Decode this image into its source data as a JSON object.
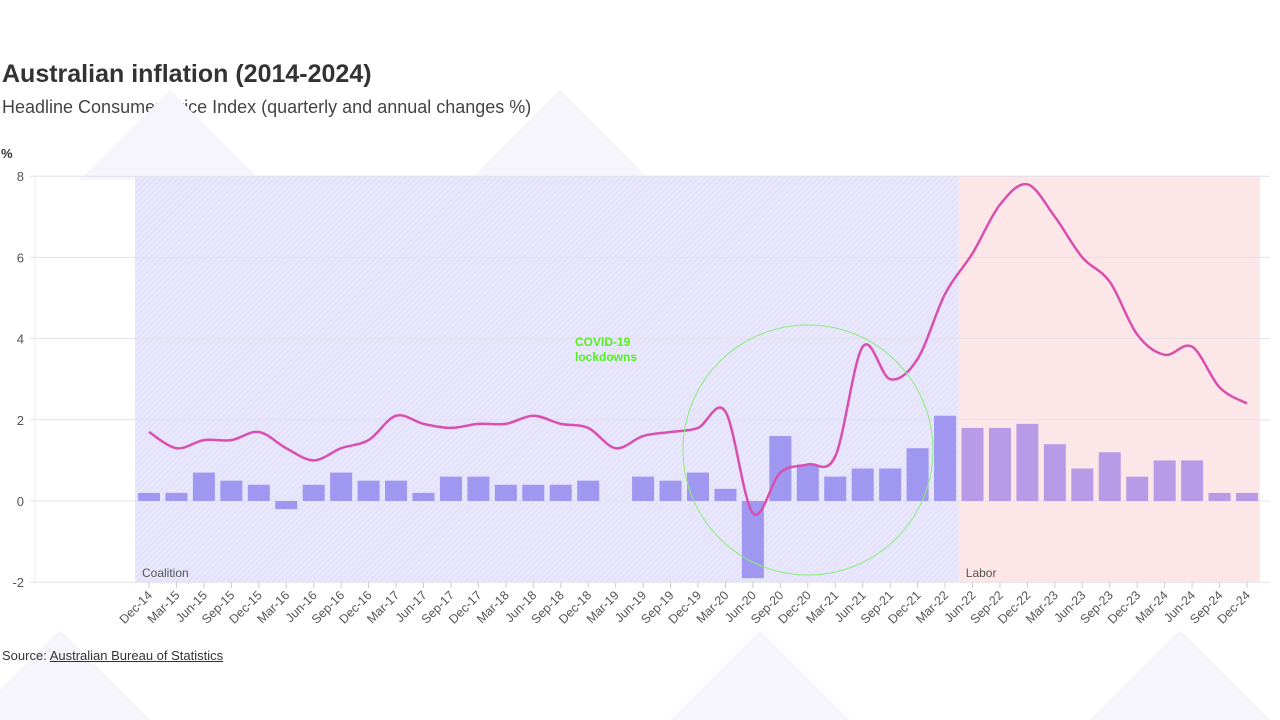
{
  "header": {
    "title": "Australian inflation (2014-2024)",
    "subtitle": "Headline Consumer Price Index (quarterly and annual changes %)"
  },
  "footer": {
    "source_prefix": "Source: ",
    "source_link": "Australian Bureau of Statistics"
  },
  "chart_data": {
    "type": "bar+line",
    "ylabel": "%",
    "ylim": [
      -2,
      8
    ],
    "yticks": [
      -2,
      0,
      2,
      4,
      6,
      8
    ],
    "grid": true,
    "categories": [
      "Dec-14",
      "Mar-15",
      "Jun-15",
      "Sep-15",
      "Dec-15",
      "Mar-16",
      "Jun-16",
      "Sep-16",
      "Dec-16",
      "Mar-17",
      "Jun-17",
      "Sep-17",
      "Dec-17",
      "Mar-18",
      "Jun-18",
      "Sep-18",
      "Dec-18",
      "Mar-19",
      "Jun-19",
      "Sep-19",
      "Dec-19",
      "Mar-20",
      "Jun-20",
      "Sep-20",
      "Dec-20",
      "Mar-21",
      "Jun-21",
      "Sep-21",
      "Dec-21",
      "Mar-22",
      "Jun-22",
      "Sep-22",
      "Dec-22",
      "Mar-23",
      "Jun-23",
      "Sep-23",
      "Dec-23",
      "Mar-24",
      "Jun-24",
      "Sep-24",
      "Dec-24"
    ],
    "series": [
      {
        "type": "bar",
        "color": "#9f97f0",
        "values": [
          0.2,
          0.2,
          0.7,
          0.5,
          0.4,
          -0.2,
          0.4,
          0.7,
          0.5,
          0.5,
          0.2,
          0.6,
          0.6,
          0.4,
          0.4,
          0.4,
          0.5,
          0.0,
          0.6,
          0.5,
          0.7,
          0.3,
          -1.9,
          1.6,
          0.9,
          0.6,
          0.8,
          0.8,
          1.3,
          2.1,
          1.8,
          1.8,
          1.9,
          1.4,
          0.8,
          1.2,
          0.6,
          1.0,
          1.0,
          0.2,
          0.2
        ]
      },
      {
        "type": "line",
        "color": "#d94fb0",
        "values": [
          1.7,
          1.3,
          1.5,
          1.5,
          1.7,
          1.3,
          1.0,
          1.3,
          1.5,
          2.1,
          1.9,
          1.8,
          1.9,
          1.9,
          2.1,
          1.9,
          1.8,
          1.3,
          1.6,
          1.7,
          1.8,
          2.2,
          -0.3,
          0.7,
          0.9,
          1.1,
          3.8,
          3.0,
          3.5,
          5.1,
          6.1,
          7.3,
          7.8,
          7.0,
          6.0,
          5.4,
          4.1,
          3.6,
          3.8,
          2.8,
          2.4
        ]
      }
    ],
    "regions": [
      {
        "label": "Coalition",
        "from": "Dec-14",
        "to": "Mar-22",
        "color": "#e6e4fb"
      },
      {
        "label": "Labor",
        "from": "Jun-22",
        "to": "Dec-24",
        "color": "#fde6e8"
      }
    ],
    "annotations": [
      {
        "text": "COVID-19 lockdowns",
        "color": "#55ee22",
        "around": [
          "Mar-20",
          "Mar-22"
        ]
      }
    ]
  }
}
